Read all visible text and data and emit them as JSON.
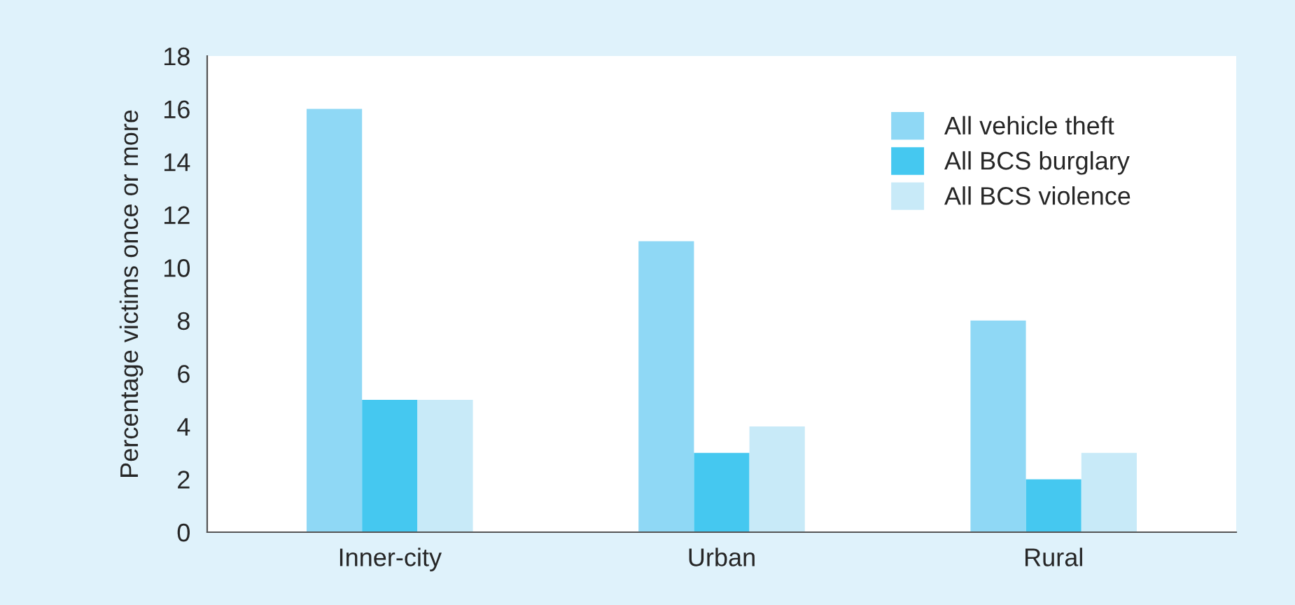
{
  "chart_data": {
    "type": "bar",
    "ylabel": "Percentage victims once or more",
    "categories": [
      "Inner-city",
      "Urban",
      "Rural"
    ],
    "series": [
      {
        "name": "All vehicle theft",
        "color": "#8fd8f5",
        "values": [
          16,
          11,
          8
        ]
      },
      {
        "name": "All BCS burglary",
        "color": "#45c8f0",
        "values": [
          5,
          3,
          2
        ]
      },
      {
        "name": "All BCS violence",
        "color": "#c8eaf8",
        "values": [
          5,
          4,
          3
        ]
      }
    ],
    "ylim": [
      0,
      18
    ],
    "yticks": [
      0,
      2,
      4,
      6,
      8,
      10,
      12,
      14,
      16,
      18
    ],
    "grid": false,
    "legend": "top right"
  }
}
